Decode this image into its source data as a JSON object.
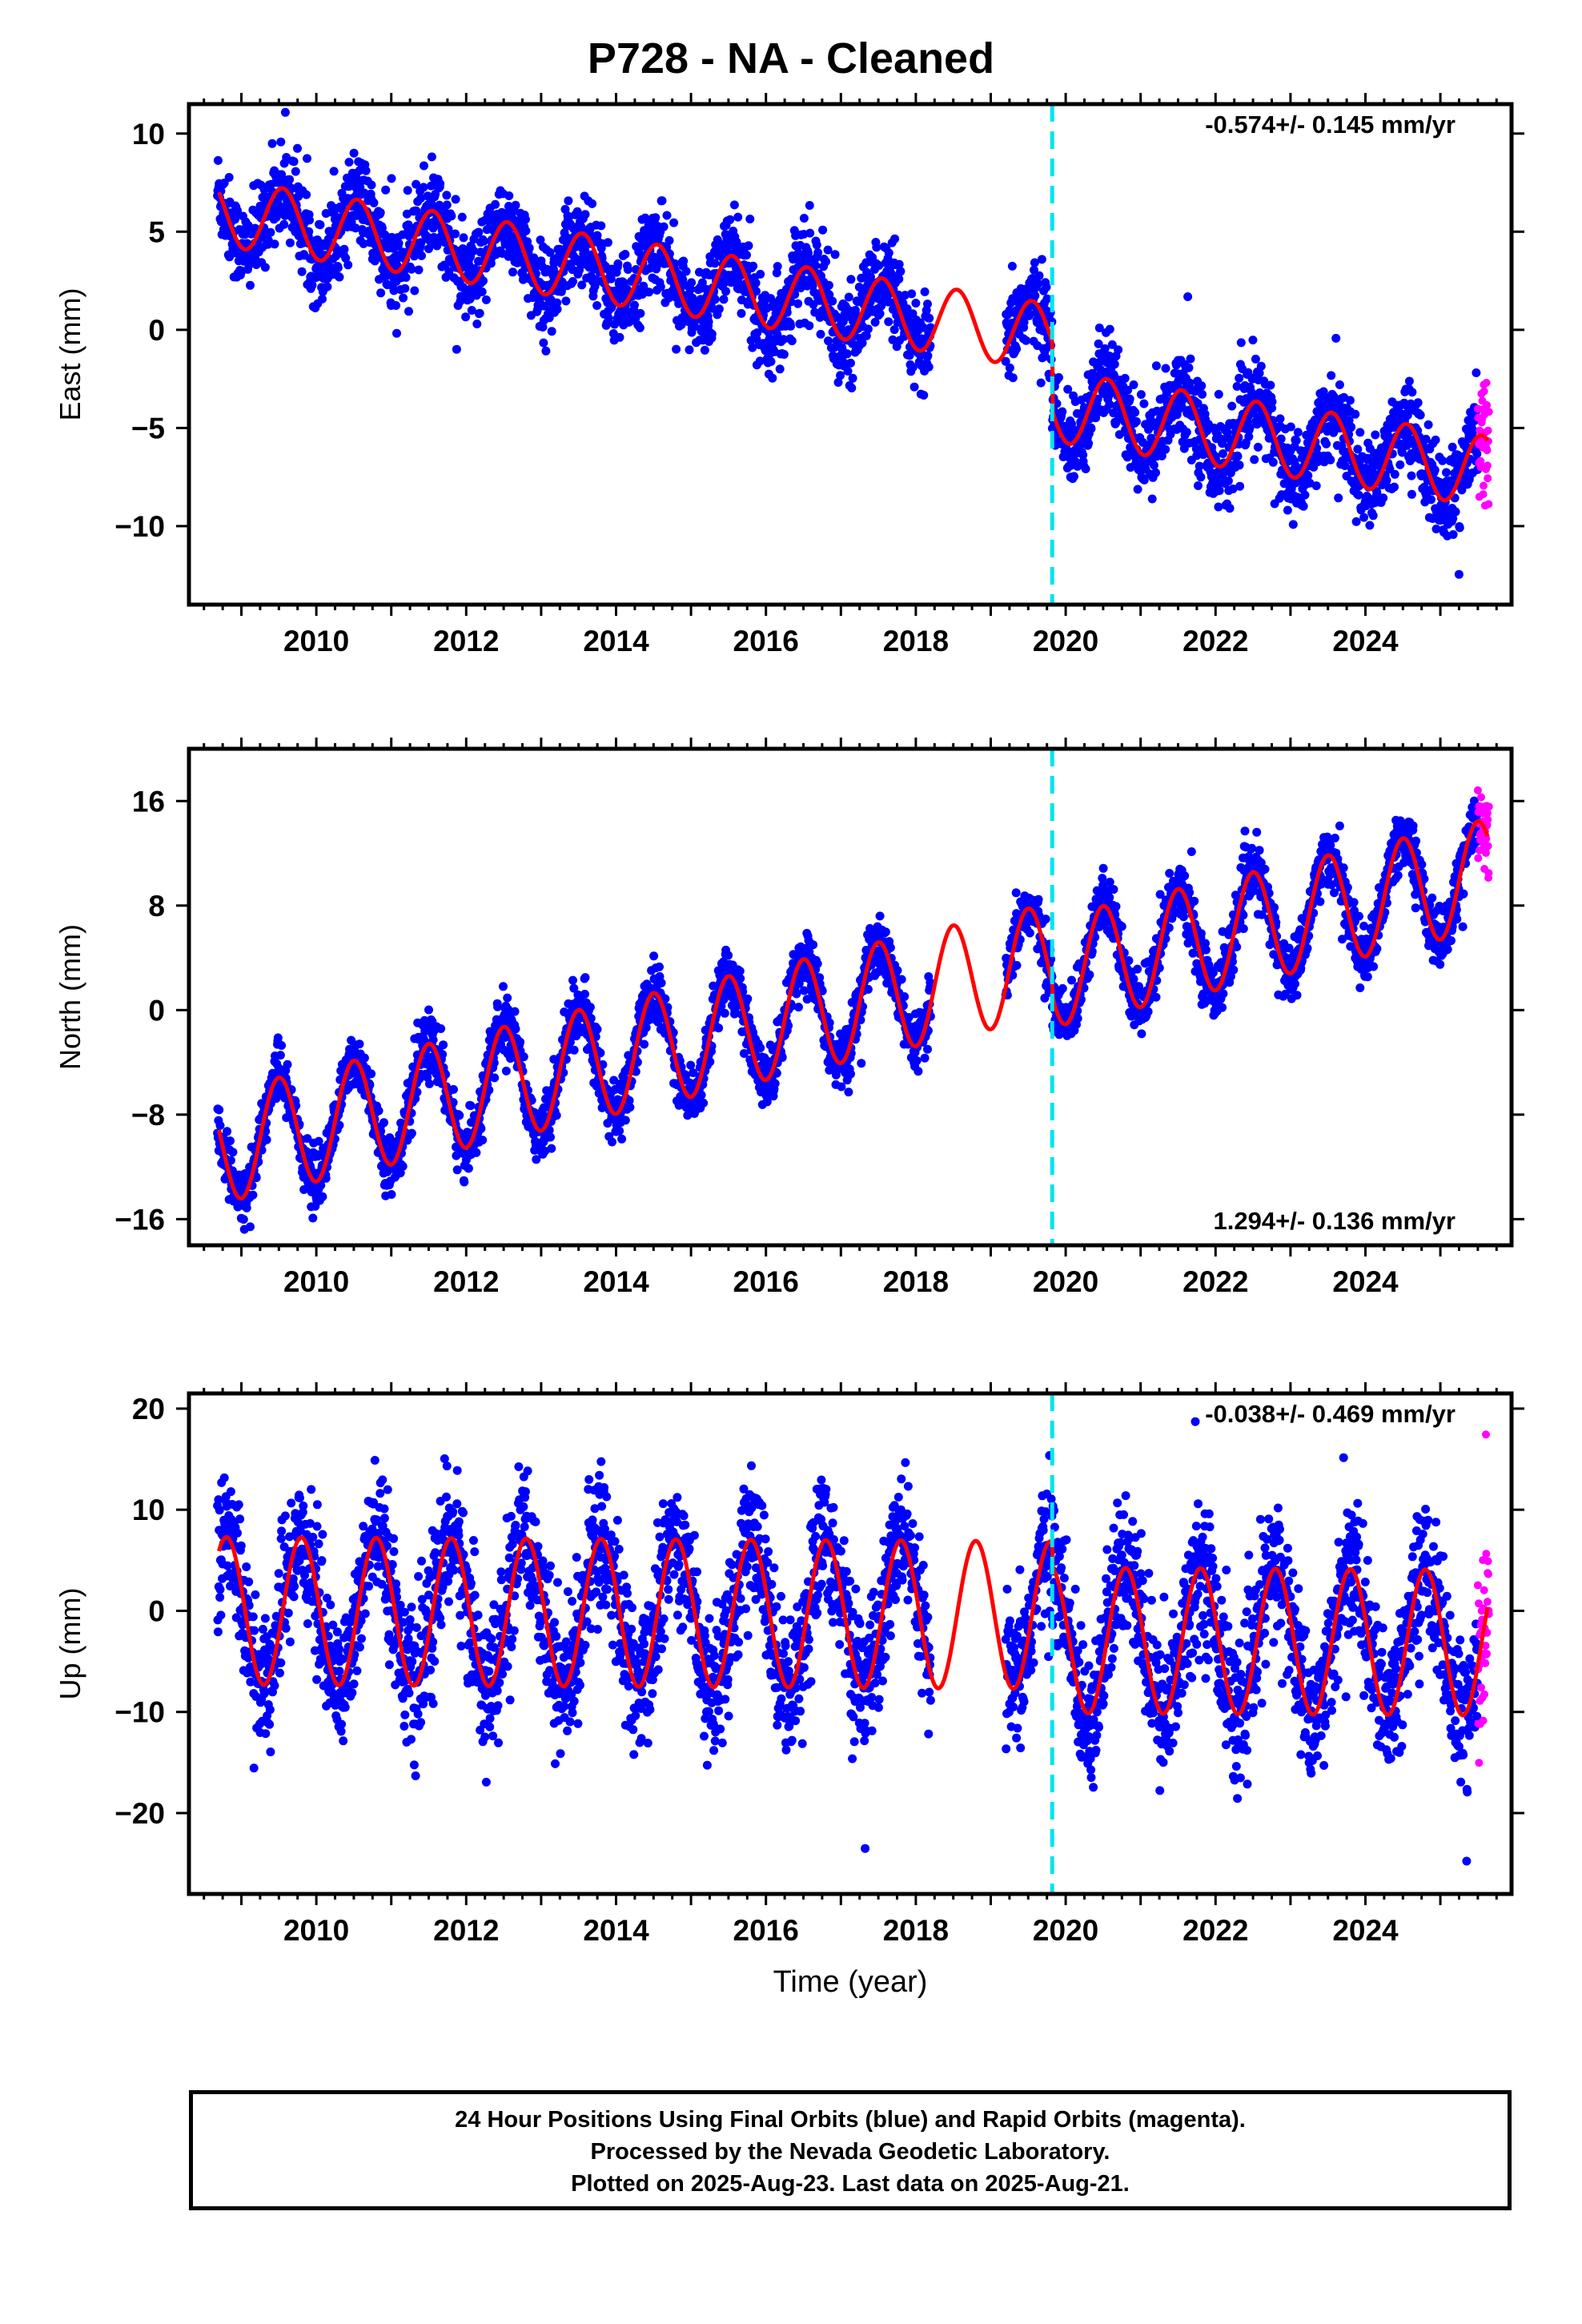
{
  "title": "P728  - NA - Cleaned",
  "xlabel": "Time (year)",
  "footer": {
    "line1": "24 Hour Positions Using Final Orbits (blue) and Rapid Orbits (magenta).",
    "line2": "Processed by the Nevada Geodetic Laboratory.",
    "line3": "Plotted on 2025-Aug-23. Last data on 2025-Aug-21."
  },
  "colors": {
    "final_orbits": "#0000ff",
    "rapid_orbits": "#ff00ff",
    "model_fit": "#ff0000",
    "event_marker": "#00e5ee"
  },
  "chart_data": [
    {
      "type": "scatter",
      "component": "east",
      "ylabel": "East (mm)",
      "rate_text": "-0.574+/- 0.145 mm/yr",
      "rate_position": "top-right",
      "xlim": [
        2008.3,
        2025.95
      ],
      "ylim": [
        -14,
        11.5
      ],
      "yticks": [
        -10,
        -5,
        0,
        5,
        10
      ],
      "xticks": [
        2010,
        2012,
        2014,
        2016,
        2018,
        2020,
        2022,
        2024
      ],
      "event_x": 2019.82,
      "gap": [
        2018.2,
        2019.2
      ],
      "rapid_start": 2025.5,
      "model": {
        "series_pre": {
          "t0": 2008.7,
          "v0": 6.0,
          "rate": -0.574,
          "amp": 1.7,
          "phase": 0.3
        },
        "offset_at_event": -3.5,
        "amp_post": 1.8,
        "noise_sd": 1.1,
        "outlier_extent": 4.0
      },
      "series": [
        {
          "name": "Final Orbits",
          "color": "#0000ff"
        },
        {
          "name": "Rapid Orbits",
          "color": "#ff00ff"
        },
        {
          "name": "Model",
          "color": "#ff0000"
        }
      ]
    },
    {
      "type": "scatter",
      "component": "north",
      "ylabel": "North (mm)",
      "rate_text": "1.294+/- 0.136 mm/yr",
      "rate_position": "bottom-right",
      "xlim": [
        2008.3,
        2025.95
      ],
      "ylim": [
        -18,
        20
      ],
      "yticks": [
        -16,
        -8,
        0,
        8,
        16
      ],
      "xticks": [
        2010,
        2012,
        2014,
        2016,
        2018,
        2020,
        2022,
        2024
      ],
      "event_x": 2019.82,
      "gap": [
        2018.2,
        2019.2
      ],
      "rapid_start": 2025.5,
      "model": {
        "series_pre": {
          "t0": 2008.7,
          "v0": -10.5,
          "rate": 1.294,
          "amp": 4.3,
          "phase": 0.25
        },
        "offset_at_event": -1.0,
        "amp_post": 4.2,
        "noise_sd": 1.1,
        "outlier_extent": 4.0
      },
      "series": [
        {
          "name": "Final Orbits",
          "color": "#0000ff"
        },
        {
          "name": "Rapid Orbits",
          "color": "#ff00ff"
        },
        {
          "name": "Model",
          "color": "#ff0000"
        }
      ]
    },
    {
      "type": "scatter",
      "component": "up",
      "ylabel": "Up (mm)",
      "rate_text": "-0.038+/- 0.469 mm/yr",
      "rate_position": "top-right",
      "xlim": [
        2008.3,
        2025.95
      ],
      "ylim": [
        -28,
        21.5
      ],
      "yticks": [
        -20,
        -10,
        0,
        10,
        20
      ],
      "xticks": [
        2010,
        2012,
        2014,
        2016,
        2018,
        2020,
        2022,
        2024
      ],
      "event_x": 2019.82,
      "gap": [
        2018.2,
        2019.2
      ],
      "rapid_start": 2025.5,
      "model": {
        "series_pre": {
          "t0": 2008.7,
          "v0": 0.0,
          "rate": -0.038,
          "amp": 7.3,
          "phase": 0.55
        },
        "offset_at_event": -2.5,
        "amp_post": 7.2,
        "noise_sd": 3.4,
        "outlier_extent": 12.0
      },
      "series": [
        {
          "name": "Final Orbits",
          "color": "#0000ff"
        },
        {
          "name": "Rapid Orbits",
          "color": "#ff00ff"
        },
        {
          "name": "Model",
          "color": "#ff0000"
        }
      ]
    }
  ]
}
